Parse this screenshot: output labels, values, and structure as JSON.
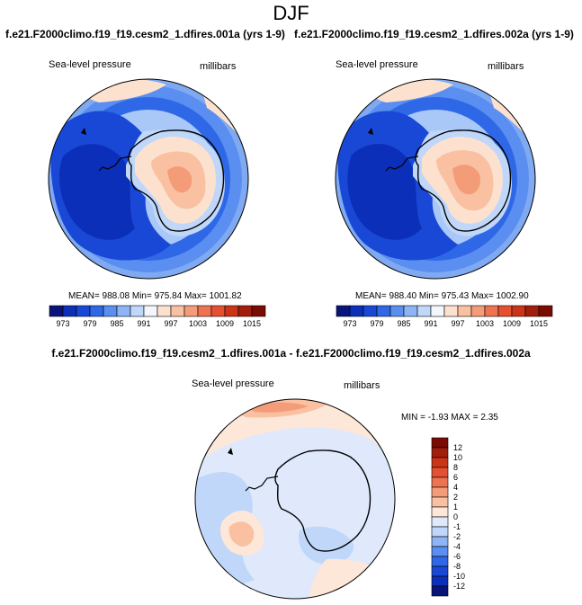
{
  "page": {
    "title": "DJF",
    "diff_title": "f.e21.F2000climo.f19_f19.cesm2_1.dfires.001a - f.e21.F2000climo.f19_f19.cesm2_1.dfires.002a"
  },
  "panels": [
    {
      "case_title": "f.e21.F2000climo.f19_f19.cesm2_1.dfires.001a (yrs 1-9)",
      "variable": "Sea-level pressure",
      "units": "millibars",
      "stats": "MEAN= 988.08  Min= 975.84  Max= 1001.82"
    },
    {
      "case_title": "f.e21.F2000climo.f19_f19.cesm2_1.dfires.002a (yrs 1-9)",
      "variable": "Sea-level pressure",
      "units": "millibars",
      "stats": "MEAN= 988.40  Min= 975.43  Max= 1002.90"
    },
    {
      "variable": "Sea-level pressure",
      "units": "millibars",
      "stats": "MIN = -1.93 MAX =  2.35"
    }
  ],
  "colorbar_abs": {
    "labels": [
      "973",
      "979",
      "985",
      "991",
      "997",
      "1003",
      "1009",
      "1015"
    ],
    "colors": [
      "#08147a",
      "#0b2fb8",
      "#1a48d6",
      "#2f68e6",
      "#5a8ef0",
      "#8db4f5",
      "#c0d7f9",
      "#f3f7fd",
      "#fde1cf",
      "#f9c0a2",
      "#f49b78",
      "#ee7351",
      "#e45030",
      "#cc3418",
      "#a21d0b",
      "#7a0c03"
    ]
  },
  "colorbar_diff": {
    "labels": [
      "12",
      "10",
      "8",
      "6",
      "4",
      "2",
      "1",
      "0",
      "-1",
      "-2",
      "-4",
      "-6",
      "-8",
      "-10",
      "-12"
    ],
    "colors_top_to_bottom": [
      "#7a0c03",
      "#a21d0b",
      "#cc3418",
      "#e45030",
      "#ee7351",
      "#f49b78",
      "#f9c0a2",
      "#fde7d8",
      "#dfe9fb",
      "#c0d7f9",
      "#8db4f5",
      "#5a8ef0",
      "#2f68e6",
      "#1a48d6",
      "#0b2fb8",
      "#08147a"
    ]
  }
}
